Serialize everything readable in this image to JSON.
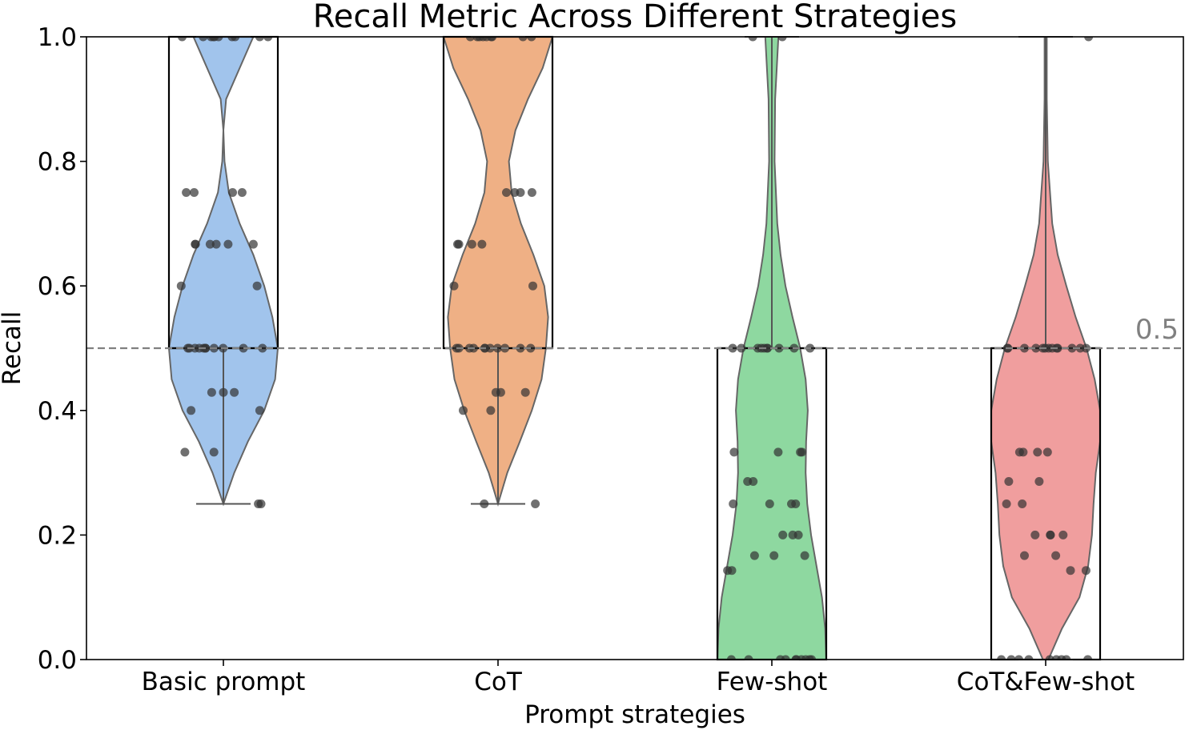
{
  "chart_data": {
    "type": "violin",
    "title": "Recall Metric Across Different Strategies",
    "xlabel": "Prompt strategies",
    "ylabel": "Recall",
    "ylim": [
      0.0,
      1.0
    ],
    "yticks": [
      "0.0",
      "0.2",
      "0.4",
      "0.6",
      "0.8",
      "1.0"
    ],
    "yticks_values": [
      0.0,
      0.2,
      0.4,
      0.6,
      0.8,
      1.0
    ],
    "grid": false,
    "reference_line": {
      "value": 0.5,
      "label": "0.5",
      "color": "#808080"
    },
    "categories": [
      "Basic prompt",
      "CoT",
      "Few-shot",
      "CoT&Few-shot"
    ],
    "colors": [
      "#a1c4ec",
      "#efb085",
      "#8ed8a0",
      "#f09e9e"
    ],
    "series": [
      {
        "category": "Basic prompt",
        "box": {
          "q1": 0.5,
          "median": 0.5,
          "q3": 1.0,
          "whisker_low": 0.25,
          "whisker_high": 1.0
        },
        "density": [
          [
            0.25,
            0.0
          ],
          [
            0.3,
            0.2
          ],
          [
            0.35,
            0.45
          ],
          [
            0.4,
            0.75
          ],
          [
            0.45,
            0.95
          ],
          [
            0.5,
            1.0
          ],
          [
            0.55,
            0.9
          ],
          [
            0.6,
            0.75
          ],
          [
            0.65,
            0.55
          ],
          [
            0.7,
            0.3
          ],
          [
            0.75,
            0.1
          ],
          [
            0.8,
            0.02
          ],
          [
            0.85,
            0.0
          ],
          [
            0.9,
            0.05
          ],
          [
            0.95,
            0.3
          ],
          [
            1.0,
            0.55
          ]
        ],
        "points": [
          0.25,
          0.25,
          0.333,
          0.333,
          0.4,
          0.4,
          0.429,
          0.429,
          0.429,
          0.5,
          0.5,
          0.5,
          0.5,
          0.5,
          0.5,
          0.5,
          0.5,
          0.5,
          0.5,
          0.5,
          0.6,
          0.6,
          0.667,
          0.667,
          0.667,
          0.667,
          0.667,
          0.667,
          0.75,
          0.75,
          0.75,
          0.75,
          1.0,
          1.0,
          1.0,
          1.0,
          1.0,
          1.0,
          1.0,
          1.0,
          1.0,
          1.0
        ]
      },
      {
        "category": "CoT",
        "box": {
          "q1": 0.5,
          "median": 0.5,
          "q3": 1.0,
          "whisker_low": 0.25,
          "whisker_high": 1.0
        },
        "density": [
          [
            0.25,
            0.0
          ],
          [
            0.3,
            0.17
          ],
          [
            0.35,
            0.4
          ],
          [
            0.4,
            0.62
          ],
          [
            0.45,
            0.8
          ],
          [
            0.5,
            0.88
          ],
          [
            0.55,
            0.92
          ],
          [
            0.6,
            0.85
          ],
          [
            0.65,
            0.65
          ],
          [
            0.7,
            0.42
          ],
          [
            0.75,
            0.25
          ],
          [
            0.8,
            0.2
          ],
          [
            0.85,
            0.32
          ],
          [
            0.9,
            0.55
          ],
          [
            0.95,
            0.82
          ],
          [
            1.0,
            1.0
          ]
        ],
        "points": [
          0.25,
          0.25,
          0.4,
          0.4,
          0.429,
          0.429,
          0.429,
          0.5,
          0.5,
          0.5,
          0.5,
          0.5,
          0.5,
          0.5,
          0.5,
          0.5,
          0.5,
          0.5,
          0.6,
          0.6,
          0.667,
          0.667,
          0.667,
          0.667,
          0.75,
          0.75,
          0.75,
          0.75,
          1.0,
          1.0,
          1.0,
          1.0,
          1.0,
          1.0,
          1.0,
          1.0,
          1.0
        ]
      },
      {
        "category": "Few-shot",
        "box": {
          "q1": 0.0,
          "median": 0.5,
          "q3": 0.5,
          "whisker_low": 0.0,
          "whisker_high": 1.0
        },
        "density": [
          [
            0.0,
            1.0
          ],
          [
            0.05,
            0.98
          ],
          [
            0.1,
            0.92
          ],
          [
            0.15,
            0.82
          ],
          [
            0.2,
            0.72
          ],
          [
            0.25,
            0.65
          ],
          [
            0.3,
            0.62
          ],
          [
            0.35,
            0.63
          ],
          [
            0.4,
            0.66
          ],
          [
            0.45,
            0.62
          ],
          [
            0.5,
            0.52
          ],
          [
            0.55,
            0.38
          ],
          [
            0.6,
            0.25
          ],
          [
            0.65,
            0.16
          ],
          [
            0.7,
            0.1
          ],
          [
            0.8,
            0.05
          ],
          [
            0.9,
            0.06
          ],
          [
            1.0,
            0.12
          ]
        ],
        "points": [
          0.0,
          0.0,
          0.0,
          0.0,
          0.0,
          0.0,
          0.0,
          0.0,
          0.0,
          0.0,
          0.143,
          0.143,
          0.167,
          0.167,
          0.167,
          0.2,
          0.2,
          0.2,
          0.25,
          0.25,
          0.25,
          0.25,
          0.286,
          0.286,
          0.333,
          0.333,
          0.333,
          0.333,
          0.5,
          0.5,
          0.5,
          0.5,
          0.5,
          0.5,
          0.5,
          0.5,
          0.5,
          0.5,
          1.0,
          1.0
        ]
      },
      {
        "category": "CoT&Few-shot",
        "box": {
          "q1": 0.0,
          "median": 0.5,
          "q3": 0.5,
          "whisker_low": 0.0,
          "whisker_high": 1.0
        },
        "density": [
          [
            0.0,
            0.05
          ],
          [
            0.05,
            0.3
          ],
          [
            0.1,
            0.62
          ],
          [
            0.15,
            0.78
          ],
          [
            0.2,
            0.85
          ],
          [
            0.25,
            0.88
          ],
          [
            0.3,
            0.92
          ],
          [
            0.35,
            1.0
          ],
          [
            0.4,
            1.0
          ],
          [
            0.45,
            0.9
          ],
          [
            0.5,
            0.75
          ],
          [
            0.55,
            0.55
          ],
          [
            0.6,
            0.38
          ],
          [
            0.65,
            0.22
          ],
          [
            0.7,
            0.12
          ],
          [
            0.8,
            0.04
          ],
          [
            0.9,
            0.02
          ],
          [
            1.0,
            0.02
          ]
        ],
        "points": [
          0.0,
          0.0,
          0.0,
          0.0,
          0.0,
          0.0,
          0.0,
          0.0,
          0.0,
          0.143,
          0.143,
          0.167,
          0.167,
          0.2,
          0.2,
          0.2,
          0.2,
          0.25,
          0.25,
          0.286,
          0.286,
          0.333,
          0.333,
          0.333,
          0.333,
          0.5,
          0.5,
          0.5,
          0.5,
          0.5,
          0.5,
          0.5,
          0.5,
          0.5,
          0.5,
          0.5,
          0.5,
          0.5,
          1.0
        ]
      }
    ]
  }
}
